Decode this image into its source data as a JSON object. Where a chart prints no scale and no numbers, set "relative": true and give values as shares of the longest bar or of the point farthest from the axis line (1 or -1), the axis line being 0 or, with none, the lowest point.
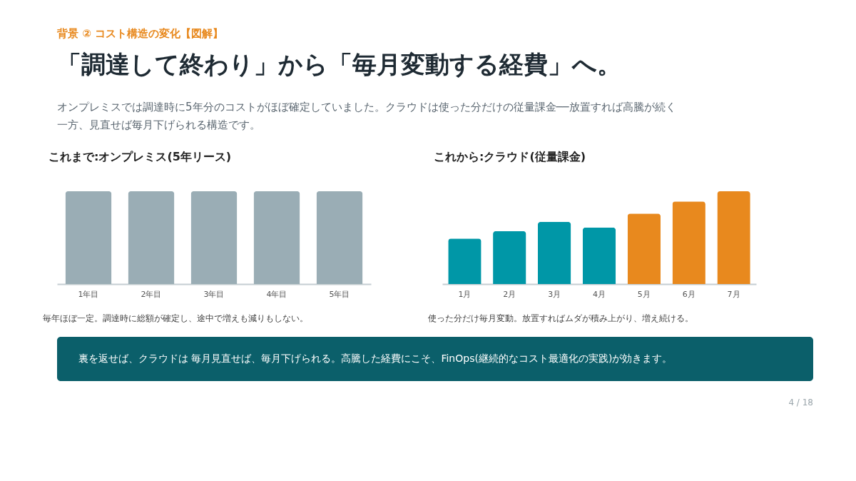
{
  "chart_data": [
    {
      "type": "bar",
      "title": "これまで:オンプレミス(5年リース)",
      "categories": [
        "1年目",
        "2年目",
        "3年目",
        "4年目",
        "5年目"
      ],
      "values": [
        1,
        1,
        1,
        1,
        1
      ],
      "color": "#9aadb5",
      "relative": true,
      "legend": false,
      "annotations": [
        "背景 ②  コスト構造の変化【図解】",
        "「調達して終わり」から「毎月変動する経費」へ。",
        "オンプレミスでは調達時に5年分のコストがほぼ確定していました。クラウドは使った分だけの従量課金──放置すれば高騰が続く",
        "一方、見直せば毎月下げられる構造です。",
        "毎年ほぼ一定。調達時に総額が確定し、途中で増えも減りもしない。",
        "裏を返せば、クラウドは 毎月見直せば、毎月下げられる。高騰した経費にこそ、FinOps(継続的なコスト最適化の実践)が効きます。",
        "4 / 18"
      ]
    },
    {
      "type": "bar",
      "title": "これから:クラウド(従量課金)",
      "categories": [
        "1月",
        "2月",
        "3月",
        "4月",
        "5月",
        "6月",
        "7月"
      ],
      "values": [
        0.49,
        0.57,
        0.67,
        0.61,
        0.76,
        0.89,
        1
      ],
      "colors": [
        "#0097a7",
        "#0097a7",
        "#0097a7",
        "#0097a7",
        "#e8891e",
        "#e8891e",
        "#e8891e"
      ],
      "relative": true,
      "legend": false,
      "annotations": [
        "使った分だけ毎月変動。放置すればムダが積み上がり、増え続ける。"
      ]
    }
  ]
}
